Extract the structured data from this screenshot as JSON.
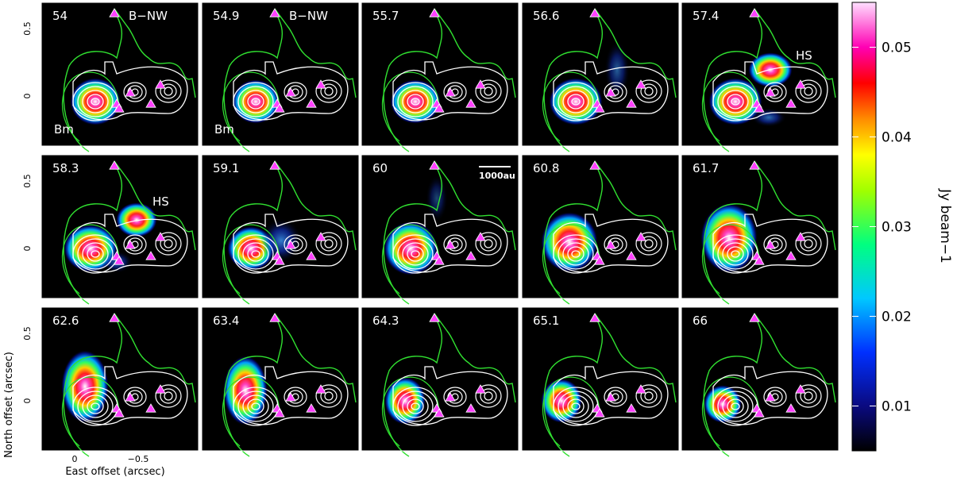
{
  "chart_data": {
    "type": "heatmap",
    "layout": "channel maps, 3 rows x 5 columns",
    "panels": [
      {
        "velocity": "54",
        "annotations": [
          "B−NW",
          "Bm"
        ]
      },
      {
        "velocity": "54.9",
        "annotations": [
          "B−NW",
          "Bm"
        ]
      },
      {
        "velocity": "55.7",
        "annotations": []
      },
      {
        "velocity": "56.6",
        "annotations": []
      },
      {
        "velocity": "57.4",
        "annotations": [
          "HS"
        ]
      },
      {
        "velocity": "58.3",
        "annotations": [
          "HS"
        ]
      },
      {
        "velocity": "59.1",
        "annotations": []
      },
      {
        "velocity": "60",
        "annotations": [
          "1000au"
        ]
      },
      {
        "velocity": "60.8",
        "annotations": []
      },
      {
        "velocity": "61.7",
        "annotations": []
      },
      {
        "velocity": "62.6",
        "annotations": []
      },
      {
        "velocity": "63.4",
        "annotations": []
      },
      {
        "velocity": "64.3",
        "annotations": []
      },
      {
        "velocity": "65.1",
        "annotations": []
      },
      {
        "velocity": "66",
        "annotations": []
      }
    ],
    "xlabel": "East offset (arcsec)",
    "ylabel": "North offset (arcsec)",
    "x_ticks": [
      "0",
      "−0.5"
    ],
    "y_ticks": [
      "0.5",
      "0"
    ],
    "colorbar": {
      "label": "Jy beam−1",
      "ticks": [
        "0.01",
        "0.02",
        "0.03",
        "0.04",
        "0.05"
      ],
      "range": [
        0.005,
        0.055
      ]
    },
    "overlays": [
      "white contours (continuum)",
      "green contour",
      "magenta triangle markers"
    ]
  }
}
